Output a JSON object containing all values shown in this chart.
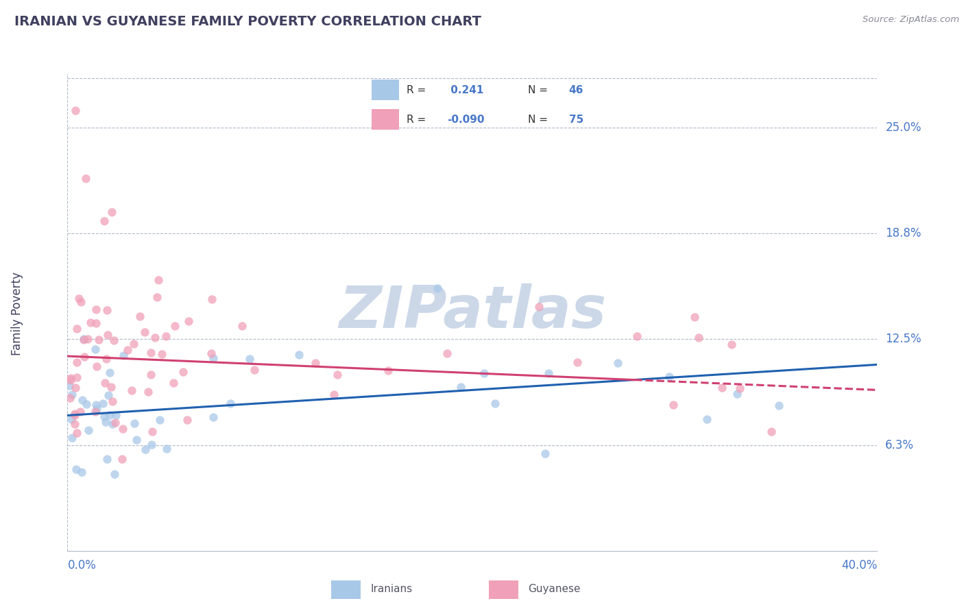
{
  "title": "IRANIAN VS GUYANESE FAMILY POVERTY CORRELATION CHART",
  "source": "Source: ZipAtlas.com",
  "ylabel": "Family Poverty",
  "xlim": [
    0.0,
    40.0
  ],
  "ylim": [
    0.0,
    28.2
  ],
  "ytick_vals": [
    6.25,
    12.5,
    18.75,
    25.0
  ],
  "ytick_labels": [
    "6.3%",
    "12.5%",
    "18.8%",
    "25.0%"
  ],
  "iranian_R": 0.241,
  "iranian_N": 46,
  "guyanese_R": -0.09,
  "guyanese_N": 75,
  "iranian_color": "#a8c8e8",
  "guyanese_color": "#f0a0b8",
  "iranian_line_color": "#2060b0",
  "guyanese_line_color": "#d04070",
  "background_color": "#ffffff",
  "grid_color": "#b0b8c8",
  "title_color": "#404060",
  "ylabel_color": "#404060",
  "tick_label_color": "#4878c8",
  "watermark": "ZIPatlas",
  "watermark_color": "#ccd8e8",
  "legend_label_1": "Iranians",
  "legend_label_2": "Guyanese"
}
